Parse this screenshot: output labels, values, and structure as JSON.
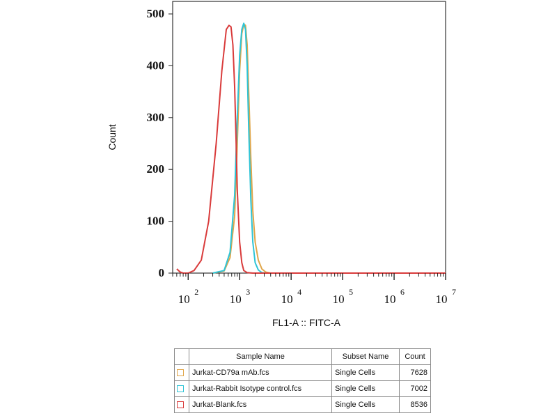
{
  "chart_data": {
    "type": "line",
    "xlabel": "FL1-A :: FITC-A",
    "ylabel": "Count",
    "xscale": "log",
    "xlim": [
      50,
      10000000
    ],
    "ylim": [
      0,
      500
    ],
    "yticks": [
      0,
      100,
      200,
      300,
      400,
      500
    ],
    "xticks": [
      {
        "value": 100,
        "base": "10",
        "exp": "2"
      },
      {
        "value": 1000,
        "base": "10",
        "exp": "3"
      },
      {
        "value": 10000,
        "base": "10",
        "exp": "4"
      },
      {
        "value": 100000,
        "base": "10",
        "exp": "5"
      },
      {
        "value": 1000000,
        "base": "10",
        "exp": "6"
      },
      {
        "value": 10000000,
        "base": "10",
        "exp": "7"
      }
    ],
    "grid": false,
    "series": [
      {
        "name": "Jurkat-CD79a mAb.fcs",
        "color": "#e0a64a",
        "x": [
          300,
          500,
          650,
          800,
          900,
          1000,
          1100,
          1200,
          1300,
          1400,
          1500,
          1650,
          1800,
          2000,
          2300,
          2700,
          3200,
          4000,
          6000,
          10000000
        ],
        "y": [
          0,
          4,
          30,
          110,
          250,
          390,
          462,
          480,
          478,
          440,
          350,
          220,
          120,
          60,
          25,
          8,
          2,
          0,
          0,
          0
        ]
      },
      {
        "name": "Jurkat-Rabbit Isotype control.fcs",
        "color": "#2ec4d6",
        "x": [
          300,
          500,
          650,
          800,
          900,
          1000,
          1100,
          1200,
          1300,
          1400,
          1500,
          1650,
          1800,
          2000,
          2300,
          2700,
          3200,
          10000000
        ],
        "y": [
          0,
          5,
          40,
          150,
          300,
          420,
          470,
          482,
          470,
          400,
          280,
          140,
          60,
          20,
          6,
          1,
          0,
          0
        ]
      },
      {
        "name": "Jurkat-Blank.fcs",
        "color": "#d93b3b",
        "x": [
          60,
          70,
          80,
          100,
          130,
          180,
          250,
          350,
          450,
          550,
          620,
          680,
          740,
          800,
          850,
          900,
          1000,
          1100,
          1200,
          1400,
          1800,
          10000000
        ],
        "y": [
          8,
          2,
          0,
          0,
          5,
          25,
          100,
          250,
          390,
          470,
          478,
          475,
          440,
          360,
          260,
          160,
          60,
          20,
          5,
          1,
          0,
          0
        ]
      }
    ]
  },
  "legend": {
    "headers": {
      "name": "Sample Name",
      "subset": "Subset Name",
      "count": "Count"
    },
    "rows": [
      {
        "color": "#e0a64a",
        "name": "Jurkat-CD79a mAb.fcs",
        "subset": "Single Cells",
        "count": "7628"
      },
      {
        "color": "#2ec4d6",
        "name": "Jurkat-Rabbit Isotype control.fcs",
        "subset": "Single Cells",
        "count": "7002"
      },
      {
        "color": "#d93b3b",
        "name": "Jurkat-Blank.fcs",
        "subset": "Single Cells",
        "count": "8536"
      }
    ]
  }
}
